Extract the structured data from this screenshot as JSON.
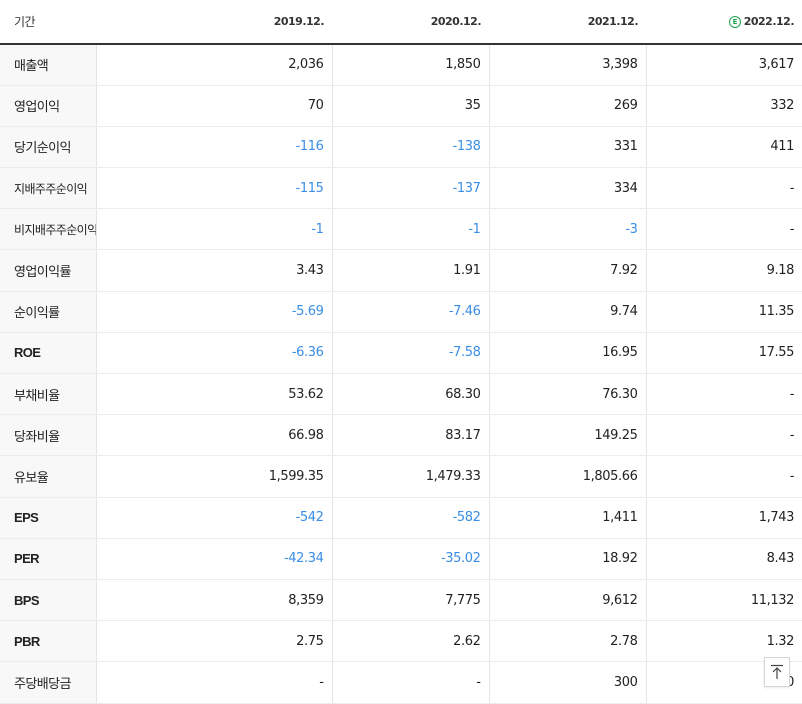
{
  "table": {
    "period_label": "기간",
    "periods": [
      {
        "label": "2019.12.",
        "estimate": false
      },
      {
        "label": "2020.12.",
        "estimate": false
      },
      {
        "label": "2021.12.",
        "estimate": false
      },
      {
        "label": "2022.12.",
        "estimate": true
      }
    ],
    "estimate_badge": "E",
    "rows": [
      {
        "label": "매출액",
        "values": [
          "2,036",
          "1,850",
          "3,398",
          "3,617"
        ]
      },
      {
        "label": "영업이익",
        "values": [
          "70",
          "35",
          "269",
          "332"
        ]
      },
      {
        "label": "당기순이익",
        "values": [
          "-116",
          "-138",
          "331",
          "411"
        ]
      },
      {
        "label": "지배주주순이익",
        "values": [
          "-115",
          "-137",
          "334",
          "-"
        ]
      },
      {
        "label": "비지배주주순이익",
        "values": [
          "-1",
          "-1",
          "-3",
          "-"
        ]
      },
      {
        "label": "영업이익률",
        "values": [
          "3.43",
          "1.91",
          "7.92",
          "9.18"
        ]
      },
      {
        "label": "순이익률",
        "values": [
          "-5.69",
          "-7.46",
          "9.74",
          "11.35"
        ]
      },
      {
        "label": "ROE",
        "values": [
          "-6.36",
          "-7.58",
          "16.95",
          "17.55"
        ]
      },
      {
        "label": "부채비율",
        "values": [
          "53.62",
          "68.30",
          "76.30",
          "-"
        ]
      },
      {
        "label": "당좌비율",
        "values": [
          "66.98",
          "83.17",
          "149.25",
          "-"
        ]
      },
      {
        "label": "유보율",
        "values": [
          "1,599.35",
          "1,479.33",
          "1,805.66",
          "-"
        ]
      },
      {
        "label": "EPS",
        "values": [
          "-542",
          "-582",
          "1,411",
          "1,743"
        ]
      },
      {
        "label": "PER",
        "values": [
          "-42.34",
          "-35.02",
          "18.92",
          "8.43"
        ]
      },
      {
        "label": "BPS",
        "values": [
          "8,359",
          "7,775",
          "9,612",
          "11,132"
        ]
      },
      {
        "label": "PBR",
        "values": [
          "2.75",
          "2.62",
          "2.78",
          "1.32"
        ]
      },
      {
        "label": "주당배당금",
        "values": [
          "-",
          "-",
          "300",
          "0"
        ]
      }
    ]
  },
  "scroll_top_icon": "arrow-up-to-line-icon",
  "colors": {
    "negative_value": "#3a8ee6",
    "estimate_badge": "#1ea24a",
    "label_background": "#f8f8f9"
  }
}
